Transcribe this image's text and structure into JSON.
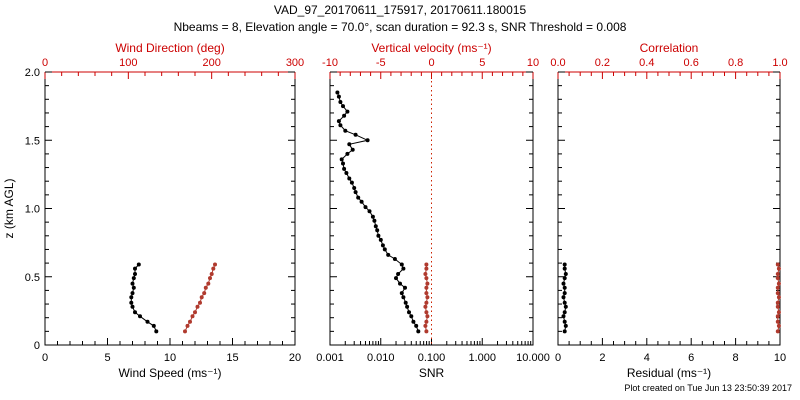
{
  "header": {
    "title": "VAD_97_20170611_175917, 20170611.180015",
    "subtitle": "Nbeams = 8, Elevation angle = 70.0°, scan duration = 92.3 s, SNR Threshold = 0.008"
  },
  "footer": {
    "created": "Plot created on Tue Jun 13 23:50:39 2017"
  },
  "colors": {
    "background": "#ffffff",
    "axis_black": "#000000",
    "axis_red": "#cc0000",
    "series_black": "#000000",
    "series_red": "#b03a2e",
    "refline_red": "#cc2200"
  },
  "chart_data": [
    {
      "name": "wind",
      "type": "line",
      "ylabel": "z (km AGL)",
      "ylim": [
        0,
        2
      ],
      "yticks": [
        0,
        0.5,
        1,
        1.5,
        2
      ],
      "ytick_labels": [
        "0",
        "0.5",
        "1.0",
        "1.5",
        "2.0"
      ],
      "x_bottom": {
        "label": "Wind Speed (ms⁻¹)",
        "lim": [
          0,
          20
        ],
        "ticks": [
          0,
          5,
          10,
          15,
          20
        ],
        "tick_labels": [
          "0",
          "5",
          "10",
          "15",
          "20"
        ],
        "minor": 1
      },
      "x_top": {
        "label": "Wind Direction (deg)",
        "lim": [
          0,
          300
        ],
        "ticks": [
          0,
          100,
          200,
          300
        ],
        "tick_labels": [
          "0",
          "100",
          "200",
          "300"
        ],
        "minor": 20
      },
      "series": [
        {
          "name": "wind-speed",
          "axis": "bottom",
          "color": "#000000",
          "points": [
            [
              8.9,
              0.1
            ],
            [
              8.7,
              0.14
            ],
            [
              8.2,
              0.17
            ],
            [
              7.6,
              0.21
            ],
            [
              7.2,
              0.24
            ],
            [
              7.0,
              0.28
            ],
            [
              6.9,
              0.31
            ],
            [
              6.9,
              0.35
            ],
            [
              7.0,
              0.38
            ],
            [
              7.1,
              0.42
            ],
            [
              7.0,
              0.45
            ],
            [
              7.1,
              0.49
            ],
            [
              7.2,
              0.52
            ],
            [
              7.2,
              0.56
            ],
            [
              7.5,
              0.59
            ]
          ]
        },
        {
          "name": "wind-direction",
          "axis": "top",
          "color": "#b03a2e",
          "points": [
            [
              168,
              0.1
            ],
            [
              171,
              0.14
            ],
            [
              174,
              0.17
            ],
            [
              177,
              0.21
            ],
            [
              180,
              0.24
            ],
            [
              183,
              0.28
            ],
            [
              186,
              0.31
            ],
            [
              188,
              0.35
            ],
            [
              191,
              0.38
            ],
            [
              193,
              0.42
            ],
            [
              196,
              0.45
            ],
            [
              198,
              0.49
            ],
            [
              200,
              0.52
            ],
            [
              202,
              0.56
            ],
            [
              204,
              0.59
            ]
          ]
        }
      ]
    },
    {
      "name": "snr",
      "type": "line",
      "ylim": [
        0,
        2
      ],
      "yticks": [
        0,
        0.5,
        1,
        1.5,
        2
      ],
      "x_bottom": {
        "label": "SNR",
        "lim": [
          0.001,
          10
        ],
        "scale": "log",
        "ticks": [
          0.001,
          0.01,
          0.1,
          1,
          10
        ],
        "tick_labels": [
          "0.001",
          "0.010",
          "0.100",
          "1.000",
          "10.000"
        ]
      },
      "x_top": {
        "label": "Vertical velocity (ms⁻¹)",
        "lim": [
          -10,
          10
        ],
        "ticks": [
          -10,
          -5,
          0,
          5,
          10
        ],
        "tick_labels": [
          "-10",
          "-5",
          "0",
          "5",
          "10"
        ],
        "minor": 1
      },
      "reflines": [
        {
          "axis": "top",
          "value": 0,
          "color": "#cc2200",
          "style": "dotted"
        }
      ],
      "series": [
        {
          "name": "snr-profile",
          "axis": "bottom",
          "color": "#000000",
          "points": [
            [
              0.055,
              0.1
            ],
            [
              0.05,
              0.14
            ],
            [
              0.044,
              0.17
            ],
            [
              0.04,
              0.21
            ],
            [
              0.036,
              0.24
            ],
            [
              0.033,
              0.28
            ],
            [
              0.031,
              0.31
            ],
            [
              0.028,
              0.35
            ],
            [
              0.026,
              0.38
            ],
            [
              0.03,
              0.42
            ],
            [
              0.024,
              0.45
            ],
            [
              0.02,
              0.49
            ],
            [
              0.022,
              0.52
            ],
            [
              0.028,
              0.56
            ],
            [
              0.026,
              0.59
            ],
            [
              0.019,
              0.63
            ],
            [
              0.014,
              0.66
            ],
            [
              0.012,
              0.7
            ],
            [
              0.011,
              0.73
            ],
            [
              0.01,
              0.77
            ],
            [
              0.009,
              0.8
            ],
            [
              0.0085,
              0.84
            ],
            [
              0.008,
              0.87
            ],
            [
              0.0075,
              0.91
            ],
            [
              0.007,
              0.94
            ],
            [
              0.006,
              0.98
            ],
            [
              0.005,
              1.01
            ],
            [
              0.0042,
              1.05
            ],
            [
              0.0036,
              1.08
            ],
            [
              0.0032,
              1.12
            ],
            [
              0.003,
              1.15
            ],
            [
              0.0027,
              1.19
            ],
            [
              0.0024,
              1.22
            ],
            [
              0.0021,
              1.26
            ],
            [
              0.0019,
              1.29
            ],
            [
              0.0018,
              1.33
            ],
            [
              0.0017,
              1.36
            ],
            [
              0.0022,
              1.4
            ],
            [
              0.0028,
              1.43
            ],
            [
              0.0024,
              1.47
            ],
            [
              0.0055,
              1.5
            ],
            [
              0.0032,
              1.54
            ],
            [
              0.002,
              1.57
            ],
            [
              0.0016,
              1.61
            ],
            [
              0.0015,
              1.64
            ],
            [
              0.0019,
              1.68
            ],
            [
              0.0022,
              1.71
            ],
            [
              0.0018,
              1.75
            ],
            [
              0.0016,
              1.78
            ],
            [
              0.0015,
              1.82
            ],
            [
              0.0014,
              1.85
            ]
          ]
        },
        {
          "name": "vertical-velocity",
          "axis": "top",
          "color": "#b03a2e",
          "points": [
            [
              -0.5,
              0.1
            ],
            [
              -0.6,
              0.14
            ],
            [
              -0.5,
              0.17
            ],
            [
              -0.4,
              0.21
            ],
            [
              -0.5,
              0.24
            ],
            [
              -0.6,
              0.28
            ],
            [
              -0.5,
              0.31
            ],
            [
              -0.4,
              0.35
            ],
            [
              -0.5,
              0.38
            ],
            [
              -0.5,
              0.42
            ],
            [
              -0.4,
              0.45
            ],
            [
              -0.5,
              0.49
            ],
            [
              -0.6,
              0.52
            ],
            [
              -0.5,
              0.56
            ],
            [
              -0.5,
              0.59
            ]
          ]
        }
      ]
    },
    {
      "name": "residual",
      "type": "line",
      "ylim": [
        0,
        2
      ],
      "yticks": [
        0,
        0.5,
        1,
        1.5,
        2
      ],
      "x_bottom": {
        "label": "Residual (ms⁻¹)",
        "lim": [
          0,
          10
        ],
        "ticks": [
          0,
          2,
          4,
          6,
          8,
          10
        ],
        "tick_labels": [
          "0",
          "2",
          "4",
          "6",
          "8",
          "10"
        ],
        "minor": 0.5
      },
      "x_top": {
        "label": "Correlation",
        "lim": [
          0,
          1
        ],
        "ticks": [
          0,
          0.2,
          0.4,
          0.6,
          0.8,
          1
        ],
        "tick_labels": [
          "0.0",
          "0.2",
          "0.4",
          "0.6",
          "0.8",
          "1.0"
        ],
        "minor": 0.05
      },
      "series": [
        {
          "name": "residual-profile",
          "axis": "bottom",
          "color": "#000000",
          "points": [
            [
              0.3,
              0.1
            ],
            [
              0.35,
              0.14
            ],
            [
              0.3,
              0.17
            ],
            [
              0.25,
              0.21
            ],
            [
              0.3,
              0.24
            ],
            [
              0.35,
              0.28
            ],
            [
              0.3,
              0.31
            ],
            [
              0.25,
              0.35
            ],
            [
              0.3,
              0.38
            ],
            [
              0.3,
              0.42
            ],
            [
              0.25,
              0.45
            ],
            [
              0.3,
              0.49
            ],
            [
              0.35,
              0.52
            ],
            [
              0.3,
              0.56
            ],
            [
              0.3,
              0.59
            ]
          ]
        },
        {
          "name": "correlation-profile",
          "axis": "top",
          "color": "#b03a2e",
          "points": [
            [
              0.99,
              0.1
            ],
            [
              0.995,
              0.14
            ],
            [
              0.99,
              0.17
            ],
            [
              0.99,
              0.21
            ],
            [
              0.995,
              0.24
            ],
            [
              0.99,
              0.28
            ],
            [
              0.99,
              0.31
            ],
            [
              0.995,
              0.35
            ],
            [
              0.99,
              0.38
            ],
            [
              0.99,
              0.42
            ],
            [
              0.995,
              0.45
            ],
            [
              0.99,
              0.49
            ],
            [
              0.99,
              0.52
            ],
            [
              0.995,
              0.56
            ],
            [
              0.99,
              0.59
            ]
          ]
        }
      ]
    }
  ]
}
